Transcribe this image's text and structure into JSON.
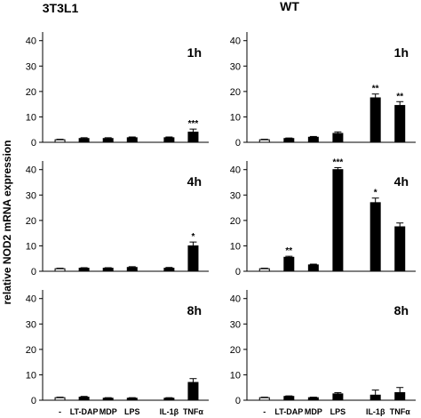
{
  "figure": {
    "column_titles": [
      "3T3L1",
      "WT"
    ],
    "ylabel": "relative NOD2 mRNA expression",
    "y_ticks": [
      0,
      10,
      20,
      30,
      40
    ],
    "categories": [
      "-",
      "LT-DAP",
      "MDP",
      "LPS",
      "IL-1β",
      "TNFα"
    ],
    "time_labels": [
      "1h",
      "4h",
      "8h"
    ]
  },
  "colors": {
    "control_bar": "#ffffff",
    "treated_bar": "#000000",
    "axis": "#000000"
  },
  "chart_data": [
    {
      "type": "bar",
      "panel": "3T3L1 1h",
      "column": "3T3L1",
      "time": "1h",
      "categories": [
        "-",
        "LT-DAP",
        "MDP",
        "LPS",
        "IL-1β",
        "TNFα"
      ],
      "values": [
        1.0,
        1.5,
        1.5,
        1.8,
        1.8,
        4.0
      ],
      "errors": [
        0.2,
        0.3,
        0.3,
        0.3,
        0.3,
        1.2
      ],
      "significance": [
        "",
        "",
        "",
        "",
        "",
        "***"
      ],
      "ylim": [
        0,
        45
      ]
    },
    {
      "type": "bar",
      "panel": "WT 1h",
      "column": "WT",
      "time": "1h",
      "categories": [
        "-",
        "LT-DAP",
        "MDP",
        "LPS",
        "IL-1β",
        "TNFα"
      ],
      "values": [
        1.0,
        1.5,
        2.0,
        3.5,
        17.5,
        14.5
      ],
      "errors": [
        0.2,
        0.2,
        0.3,
        0.6,
        1.5,
        1.5
      ],
      "significance": [
        "",
        "",
        "",
        "",
        "**",
        "**"
      ],
      "ylim": [
        0,
        45
      ]
    },
    {
      "type": "bar",
      "panel": "3T3L1 4h",
      "column": "3T3L1",
      "time": "4h",
      "categories": [
        "-",
        "LT-DAP",
        "MDP",
        "LPS",
        "IL-1β",
        "TNFα"
      ],
      "values": [
        1.0,
        1.2,
        1.2,
        1.5,
        1.2,
        10.0
      ],
      "errors": [
        0.2,
        0.2,
        0.2,
        0.3,
        0.3,
        1.5
      ],
      "significance": [
        "",
        "",
        "",
        "",
        "",
        "*"
      ],
      "ylim": [
        0,
        45
      ]
    },
    {
      "type": "bar",
      "panel": "WT 4h",
      "column": "WT",
      "time": "4h",
      "categories": [
        "-",
        "LT-DAP",
        "MDP",
        "LPS",
        "IL-1β",
        "TNFα"
      ],
      "values": [
        1.0,
        5.5,
        2.5,
        40.0,
        27.0,
        17.5
      ],
      "errors": [
        0.2,
        0.4,
        0.3,
        0.8,
        1.8,
        1.5
      ],
      "significance": [
        "",
        "**",
        "",
        "***",
        "*",
        ""
      ],
      "ylim": [
        0,
        45
      ]
    },
    {
      "type": "bar",
      "panel": "3T3L1 8h",
      "column": "3T3L1",
      "time": "8h",
      "categories": [
        "-",
        "LT-DAP",
        "MDP",
        "LPS",
        "IL-1β",
        "TNFα"
      ],
      "values": [
        1.0,
        1.2,
        0.8,
        0.8,
        0.8,
        7.0
      ],
      "errors": [
        0.2,
        0.3,
        0.2,
        0.2,
        0.2,
        1.5
      ],
      "significance": [
        "",
        "",
        "",
        "",
        "",
        ""
      ],
      "ylim": [
        0,
        45
      ]
    },
    {
      "type": "bar",
      "panel": "WT 8h",
      "column": "WT",
      "time": "8h",
      "categories": [
        "-",
        "LT-DAP",
        "MDP",
        "LPS",
        "IL-1β",
        "TNFα"
      ],
      "values": [
        1.0,
        1.5,
        1.0,
        2.5,
        2.0,
        3.0
      ],
      "errors": [
        0.2,
        0.2,
        0.2,
        0.5,
        2.0,
        2.0
      ],
      "significance": [
        "",
        "",
        "",
        "",
        "",
        ""
      ],
      "ylim": [
        0,
        45
      ]
    }
  ]
}
